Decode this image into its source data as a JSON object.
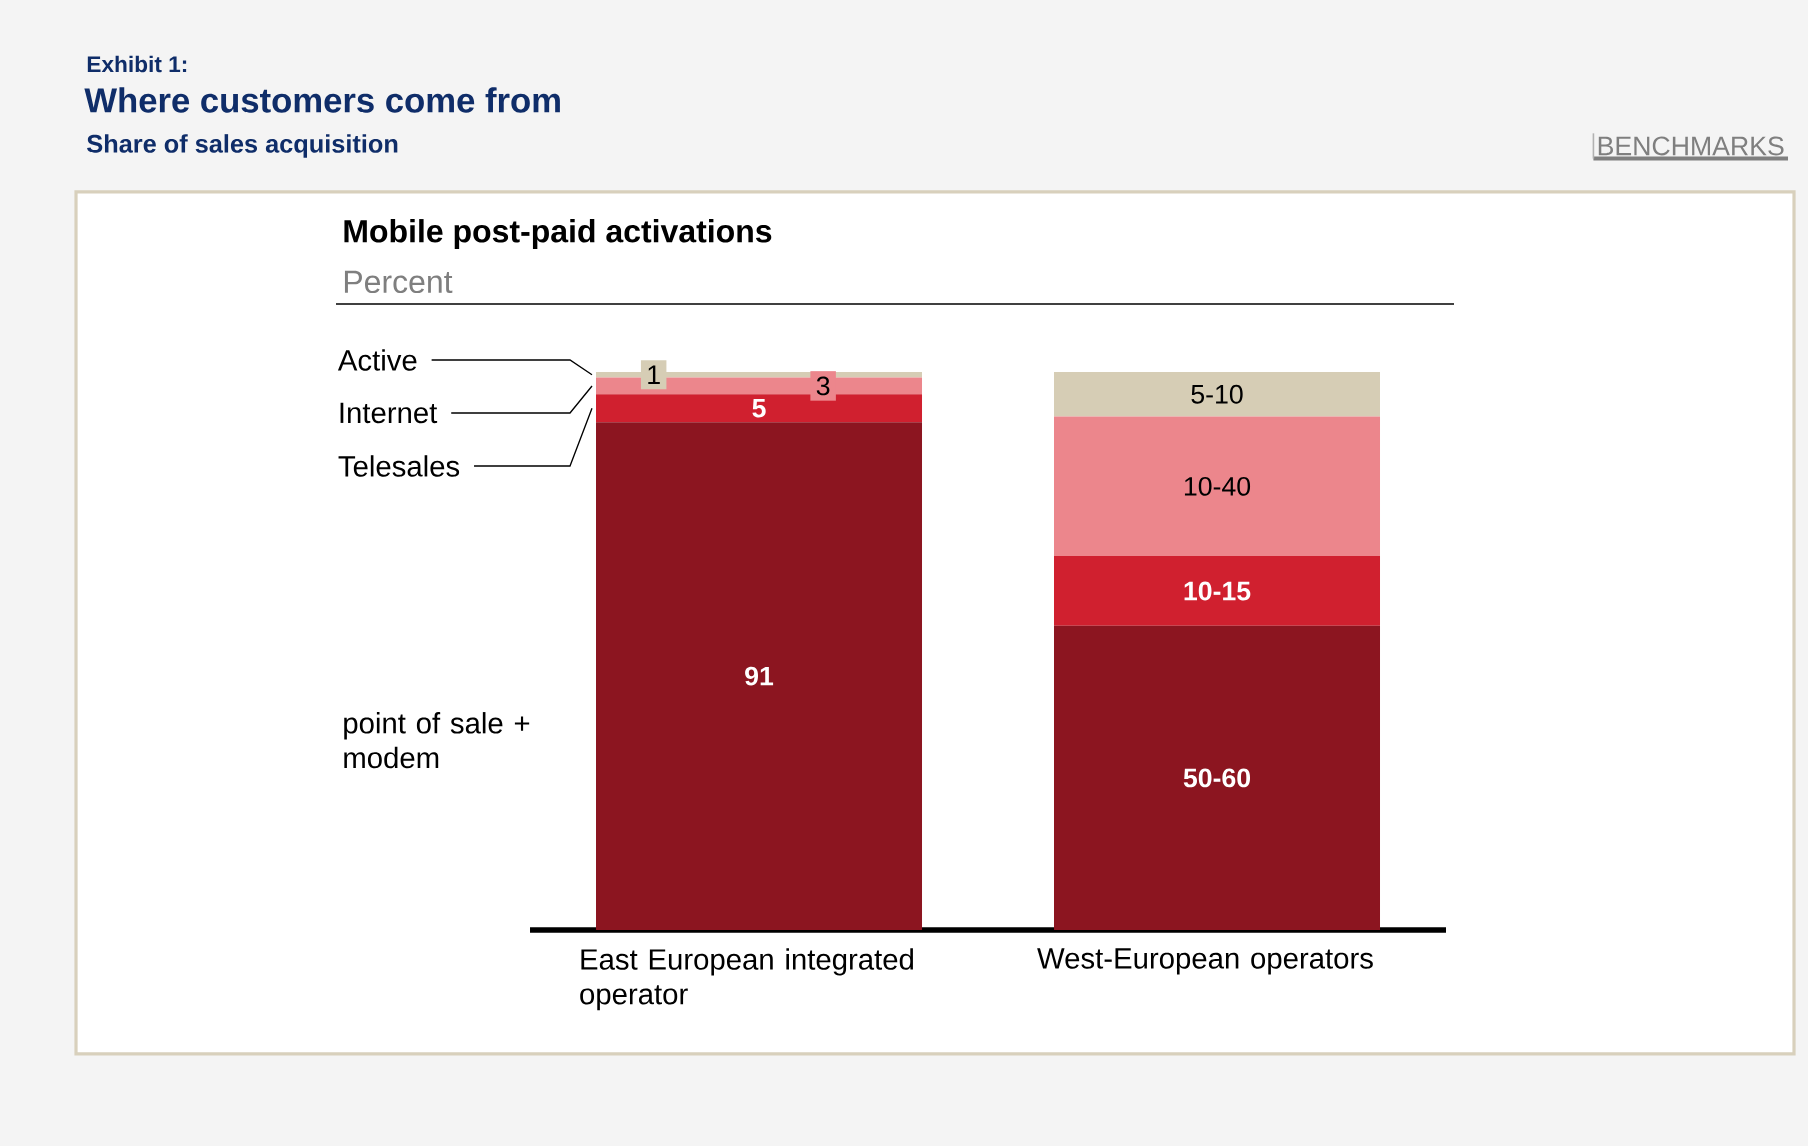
{
  "chart_data": {
    "type": "bar",
    "stacked": true,
    "title": "Where customers come from",
    "subtitle": "Share of sales acquisition",
    "annotations": [
      "Exhibit 1:",
      "BENCHMARKS",
      "Mobile post-paid activations",
      "Percent"
    ],
    "categories": [
      "East European integrated operator",
      "West-European operators"
    ],
    "series": [
      {
        "name": "point of sale + modem",
        "color": "#8c1520",
        "values": [
          91,
          54.5
        ],
        "value_labels": [
          "91",
          "50-60"
        ]
      },
      {
        "name": "Telesales",
        "color": "#d0202f",
        "values": [
          5,
          12.5
        ],
        "value_labels": [
          "5",
          "10-15"
        ]
      },
      {
        "name": "Internet",
        "color": "#ec868c",
        "values": [
          3,
          25
        ],
        "value_labels": [
          "3",
          "10-40"
        ]
      },
      {
        "name": "Active",
        "color": "#d6cdb5",
        "values": [
          1,
          8
        ],
        "value_labels": [
          "1",
          "5-10"
        ]
      }
    ]
  }
}
